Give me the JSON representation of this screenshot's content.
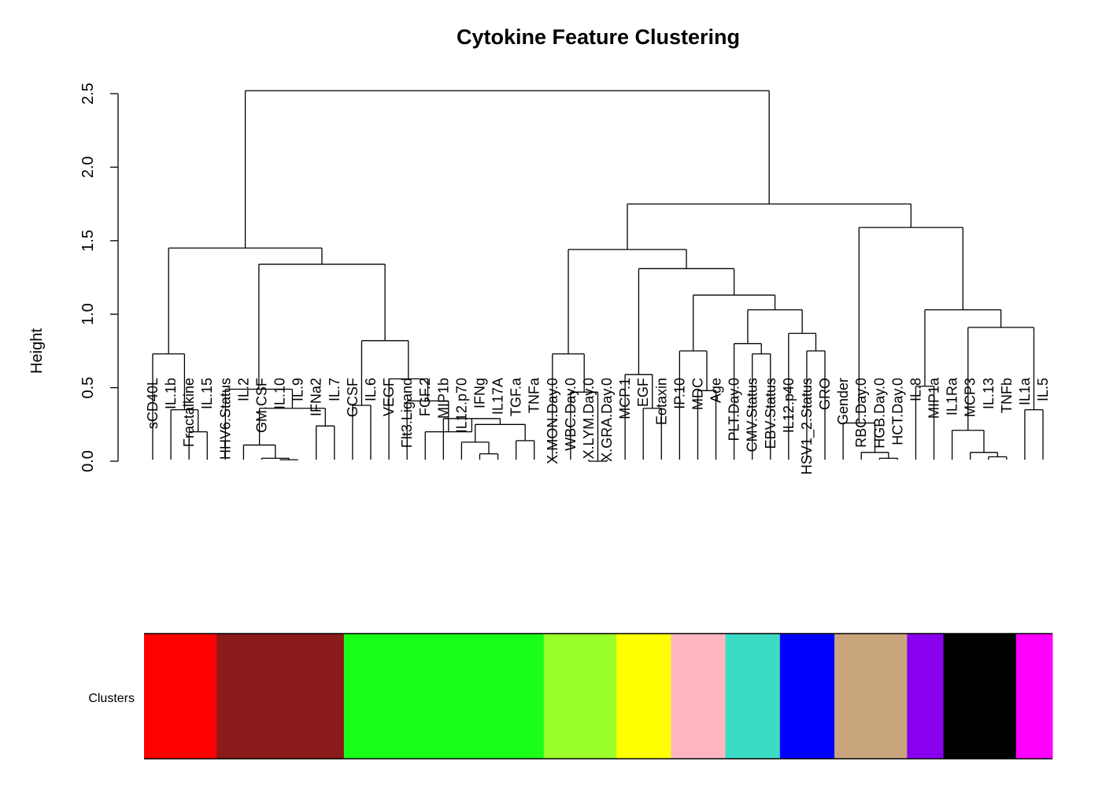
{
  "chart_data": {
    "type": "dendrogram",
    "title": "Cytokine Feature Clustering",
    "ylabel": "Height",
    "ylim": [
      0,
      2.6
    ],
    "yticks": [
      "0.0",
      "0.5",
      "1.0",
      "1.5",
      "2.0",
      "2.5"
    ],
    "leaves": [
      "sCD40L",
      "IL.1b",
      "Fractalkine",
      "IL.15",
      "HHV6.Status",
      "IL.2",
      "GM.CSF",
      "IL.10",
      "IL.9",
      "IFNa2",
      "IL.7",
      "GCSF",
      "IL.6",
      "VEGF",
      "Flt3.Ligand",
      "FGF.2",
      "MIP1b",
      "IL12.p70",
      "IFNg",
      "IL17A",
      "TGF.a",
      "TNFa",
      "X.MON.Day.0",
      "WBC.Day.0",
      "X.LYM.Day.0",
      "X.GRA.Day.0",
      "MCP.1",
      "EGF",
      "Eotaxin",
      "IP.10",
      "MDC",
      "Age",
      "PLT.Day.0",
      "CMV.Status",
      "EBV.Status",
      "IL12.p40",
      "HSV1_2.Status",
      "GRO",
      "Gender",
      "RBC.Day.0",
      "HGB.Day.0",
      "HCT.Day.0",
      "IL.8",
      "MIP1a",
      "IL1Ra",
      "MCP3",
      "IL.13",
      "TNFb",
      "IL1a",
      "IL.5"
    ],
    "merges": [
      [
        9,
        10,
        0.01
      ],
      [
        8,
        9,
        0.01
      ],
      [
        7,
        8,
        0.02
      ],
      [
        6,
        7,
        0.11
      ],
      [
        11,
        12,
        0.24
      ],
      [
        5,
        11,
        0.36
      ],
      [
        4,
        5,
        0.49
      ],
      [
        2,
        3,
        0.2
      ],
      [
        1,
        2,
        0.35
      ],
      [
        0,
        1,
        0.73
      ],
      [
        17,
        18,
        0.13
      ],
      [
        18,
        19,
        0.05
      ],
      [
        16,
        18,
        0.25
      ],
      [
        15,
        16,
        0.29
      ],
      [
        14,
        15,
        0.2
      ],
      [
        13,
        14,
        0.41
      ],
      [
        12,
        13,
        0.56
      ],
      [
        13,
        14,
        0.38
      ],
      [
        11,
        12,
        0.38
      ],
      [
        10,
        11,
        0.82
      ],
      [
        19,
        20,
        0.14
      ],
      [
        20,
        21,
        0.25
      ]
    ],
    "merge_nodes": [
      {
        "id": "n_il10_il9",
        "children": [
          "IL.10",
          "IL.9"
        ],
        "height": 0.01
      },
      {
        "id": "n_gmcsf",
        "children": [
          "GM.CSF",
          "n_il10_il9"
        ],
        "height": 0.02
      },
      {
        "id": "n_il2",
        "children": [
          "IL.2",
          "n_gmcsf"
        ],
        "height": 0.11
      },
      {
        "id": "n_ifna2_il7",
        "children": [
          "IFNa2",
          "IL.7"
        ],
        "height": 0.24
      },
      {
        "id": "n_il2_ifn",
        "children": [
          "n_il2",
          "n_ifna2_il7"
        ],
        "height": 0.36
      },
      {
        "id": "n_hhv6",
        "children": [
          "HHV6.Status",
          "n_il2_ifn"
        ],
        "height": 0.49
      },
      {
        "id": "n_fract_il15",
        "children": [
          "Fractalkine",
          "IL.15"
        ],
        "height": 0.2
      },
      {
        "id": "n_il1b",
        "children": [
          "IL.1b",
          "n_fract_il15"
        ],
        "height": 0.35
      },
      {
        "id": "n_scd40l",
        "children": [
          "sCD40L",
          "n_il1b"
        ],
        "height": 0.73
      },
      {
        "id": "n_ifng_il17a",
        "children": [
          "IFNg",
          "IL17A"
        ],
        "height": 0.05
      },
      {
        "id": "n_il12p70",
        "children": [
          "IL12.p70",
          "n_ifng_il17a"
        ],
        "height": 0.13
      },
      {
        "id": "n_tgfa_tnfa",
        "children": [
          "TGF.a",
          "TNFa"
        ],
        "height": 0.14
      },
      {
        "id": "n_il12_tgf",
        "children": [
          "n_il12p70",
          "n_tgfa_tnfa"
        ],
        "height": 0.25
      },
      {
        "id": "n_mip1b",
        "children": [
          "MIP1b",
          "n_il12_tgf"
        ],
        "height": 0.29
      },
      {
        "id": "n_fgf2",
        "children": [
          "FGF.2",
          "n_mip1b"
        ],
        "height": 0.2
      },
      {
        "id": "n_flt3",
        "children": [
          "Flt3.Ligand",
          "n_fgf2"
        ],
        "height": 0.41
      },
      {
        "id": "n_vegf",
        "children": [
          "VEGF",
          "n_flt3"
        ],
        "height": 0.56
      },
      {
        "id": "n_gcsf_il6",
        "children": [
          "GCSF",
          "IL.6"
        ],
        "height": 0.38
      },
      {
        "id": "n_green",
        "children": [
          "n_gcsf_il6",
          "n_vegf"
        ],
        "height": 0.82
      },
      {
        "id": "n_brown_green",
        "children": [
          "n_hhv6",
          "n_green"
        ],
        "height": 1.34
      },
      {
        "id": "n_left",
        "children": [
          "n_scd40l",
          "n_brown_green"
        ],
        "height": 1.45
      },
      {
        "id": "n_lym_gra",
        "children": [
          "X.LYM.Day.0",
          "X.GRA.Day.0"
        ],
        "height": 0.0
      },
      {
        "id": "n_wbc",
        "children": [
          "WBC.Day.0",
          "n_lym_gra"
        ],
        "height": 0.47
      },
      {
        "id": "n_mon",
        "children": [
          "X.MON.Day.0",
          "n_wbc"
        ],
        "height": 0.73
      },
      {
        "id": "n_egf_eotaxin",
        "children": [
          "EGF",
          "Eotaxin"
        ],
        "height": 0.36
      },
      {
        "id": "n_mcp1",
        "children": [
          "MCP.1",
          "n_egf_eotaxin"
        ],
        "height": 0.59
      },
      {
        "id": "n_mdc_age",
        "children": [
          "MDC",
          "Age"
        ],
        "height": 0.48
      },
      {
        "id": "n_ip10",
        "children": [
          "IP.10",
          "n_mdc_age"
        ],
        "height": 0.75
      },
      {
        "id": "n_cmv_ebv",
        "children": [
          "CMV.Status",
          "EBV.Status"
        ],
        "height": 0.73
      },
      {
        "id": "n_plt",
        "children": [
          "PLT.Day.0",
          "n_cmv_ebv"
        ],
        "height": 0.8
      },
      {
        "id": "n_hsv_gro",
        "children": [
          "HSV1_2.Status",
          "GRO"
        ],
        "height": 0.75
      },
      {
        "id": "n_il12p40",
        "children": [
          "IL12.p40",
          "n_hsv_gro"
        ],
        "height": 0.87
      },
      {
        "id": "n_plt_il12",
        "children": [
          "n_plt",
          "n_il12p40"
        ],
        "height": 1.03
      },
      {
        "id": "n_ip10_plt",
        "children": [
          "n_ip10",
          "n_plt_il12"
        ],
        "height": 1.13
      },
      {
        "id": "n_mcp1_ip10",
        "children": [
          "n_mcp1",
          "n_ip10_plt"
        ],
        "height": 1.31
      },
      {
        "id": "n_mon_mcp1",
        "children": [
          "n_mon",
          "n_mcp1_ip10"
        ],
        "height": 1.44
      },
      {
        "id": "n_hgb_hct",
        "children": [
          "HGB.Day.0",
          "HCT.Day.0"
        ],
        "height": 0.02
      },
      {
        "id": "n_rbc",
        "children": [
          "RBC.Day.0",
          "n_hgb_hct"
        ],
        "height": 0.06
      },
      {
        "id": "n_gender",
        "children": [
          "Gender",
          "n_rbc"
        ],
        "height": 0.26
      },
      {
        "id": "n_il8_mip1a",
        "children": [
          "IL.8",
          "MIP1a"
        ],
        "height": 0.51
      },
      {
        "id": "n_il13_tnfb",
        "children": [
          "IL.13",
          "TNFb"
        ],
        "height": 0.03
      },
      {
        "id": "n_mcp3",
        "children": [
          "MCP3",
          "n_il13_tnfb"
        ],
        "height": 0.06
      },
      {
        "id": "n_il1ra",
        "children": [
          "IL1Ra",
          "n_mcp3"
        ],
        "height": 0.21
      },
      {
        "id": "n_il1a_il5",
        "children": [
          "IL1a",
          "IL.5"
        ],
        "height": 0.35
      },
      {
        "id": "n_il1ra_il1a",
        "children": [
          "n_il1ra",
          "n_il1a_il5"
        ],
        "height": 0.91
      },
      {
        "id": "n_il8_il1ra",
        "children": [
          "n_il8_mip1a",
          "n_il1ra_il1a"
        ],
        "height": 1.03
      },
      {
        "id": "n_gender_il8",
        "children": [
          "n_gender",
          "n_il8_il1ra"
        ],
        "height": 1.59
      },
      {
        "id": "n_right",
        "children": [
          "n_mon_mcp1",
          "n_gender_il8"
        ],
        "height": 1.75
      },
      {
        "id": "n_root",
        "children": [
          "n_left",
          "n_right"
        ],
        "height": 2.52
      }
    ],
    "color_bar": {
      "label": "Clusters",
      "segments": [
        {
          "color": "#ff0000",
          "count": 4
        },
        {
          "color": "#8b1a1a",
          "count": 7
        },
        {
          "color": "#1aff1a",
          "count": 11
        },
        {
          "color": "#9aff2a",
          "count": 4
        },
        {
          "color": "#ffff00",
          "count": 3
        },
        {
          "color": "#ffb6c1",
          "count": 3
        },
        {
          "color": "#3cdcc4",
          "count": 3
        },
        {
          "color": "#0000ff",
          "count": 3
        },
        {
          "color": "#c8a57c",
          "count": 4
        },
        {
          "color": "#8a00ee",
          "count": 2
        },
        {
          "color": "#000000",
          "count": 4
        },
        {
          "color": "#ff00ff",
          "count": 2
        }
      ]
    }
  }
}
